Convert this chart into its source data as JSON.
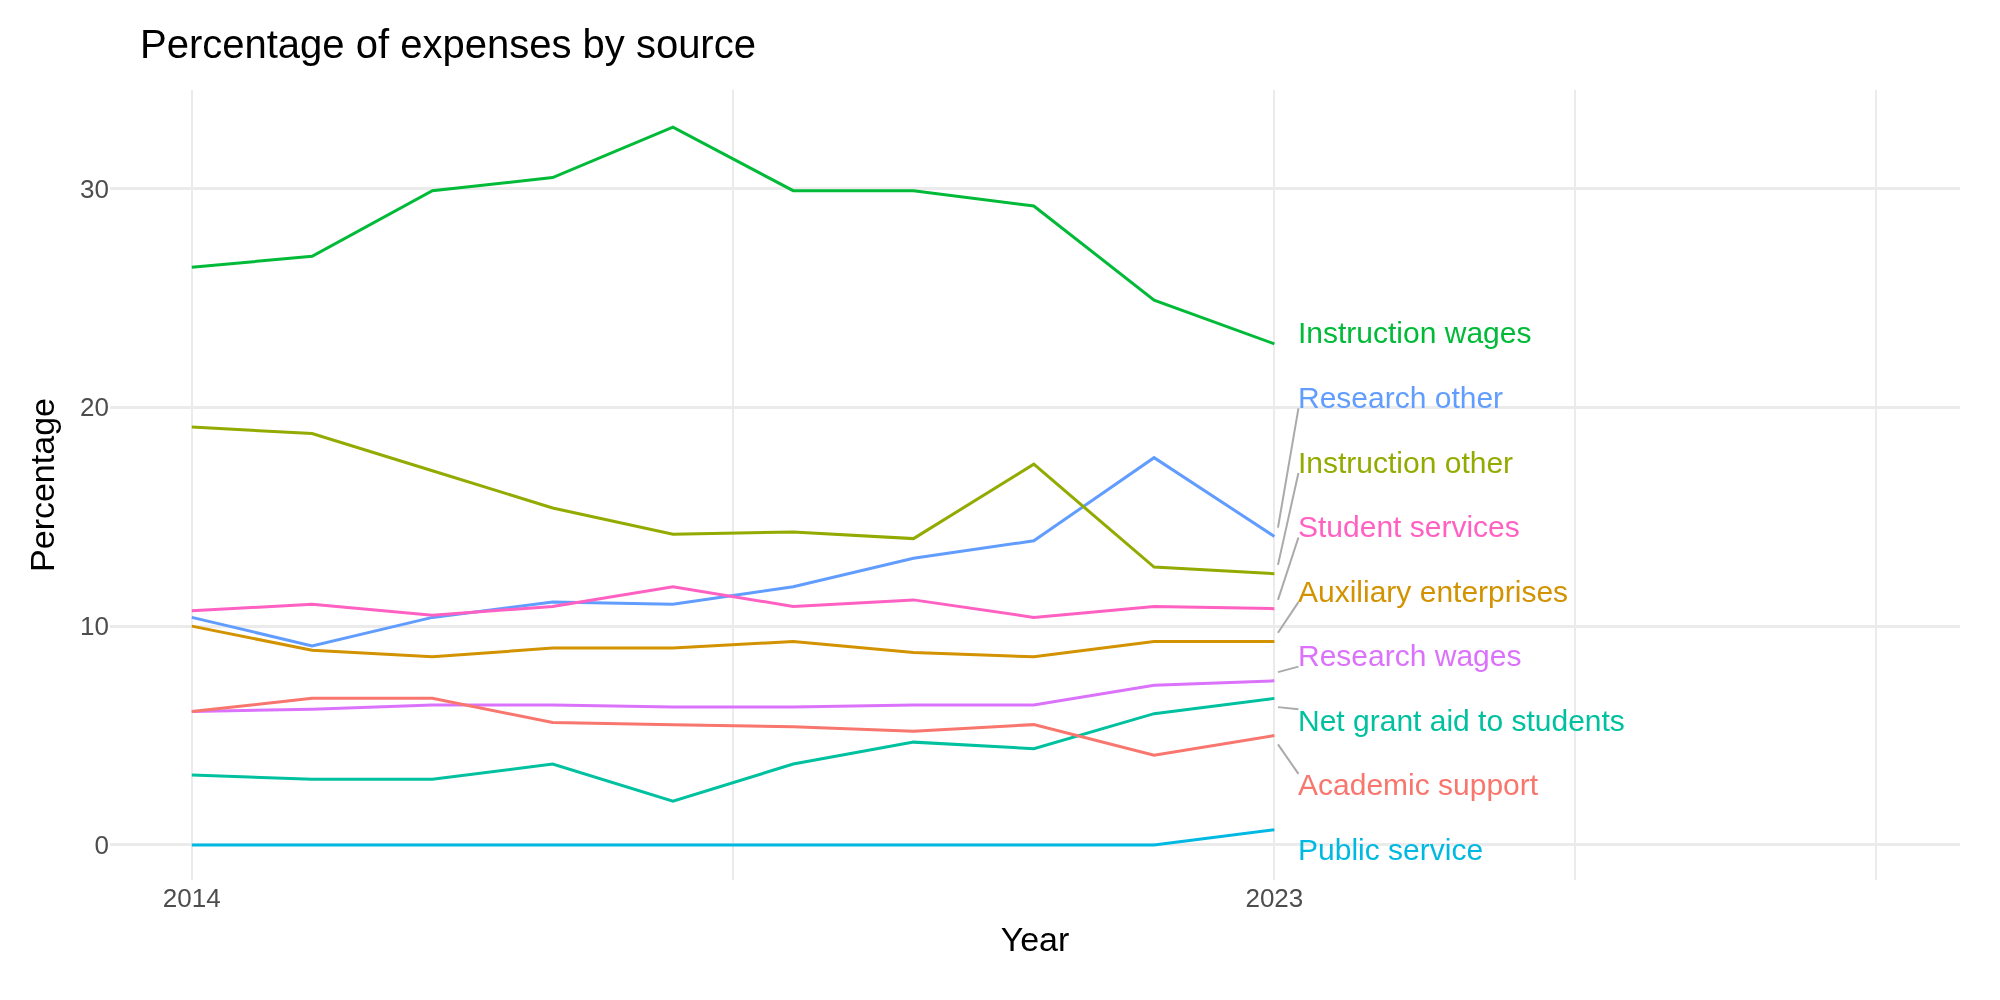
{
  "chart_data": {
    "type": "line",
    "title": "Percentage of expenses by source",
    "xlabel": "Year",
    "ylabel": "Percentage",
    "x": [
      2014,
      2015,
      2016,
      2017,
      2018,
      2019,
      2020,
      2021,
      2022,
      2023
    ],
    "xlim": [
      2013.32,
      2028.7
    ],
    "xticks": [
      2014,
      {
        "value": 2018.5,
        "label": null
      },
      2023,
      {
        "value": 2025.5,
        "label": null
      },
      {
        "value": 2028,
        "label": null
      }
    ],
    "ylim": [
      -1.6,
      34.5
    ],
    "yticks": [
      0,
      10,
      20,
      30
    ],
    "grid": true,
    "legend": false,
    "series": [
      {
        "name": "Instruction wages",
        "color": "#00ba38",
        "values": [
          26.4,
          26.9,
          29.9,
          30.5,
          32.8,
          29.9,
          29.9,
          29.2,
          24.9,
          22.9
        ]
      },
      {
        "name": "Research other",
        "color": "#619cff",
        "values": [
          10.4,
          9.1,
          10.4,
          11.1,
          11.0,
          11.8,
          13.1,
          13.9,
          17.7,
          14.1
        ]
      },
      {
        "name": "Instruction other",
        "color": "#93aa00",
        "values": [
          19.1,
          18.8,
          17.1,
          15.4,
          14.2,
          14.3,
          14.0,
          17.4,
          12.7,
          12.4
        ]
      },
      {
        "name": "Student services",
        "color": "#ff61c3",
        "values": [
          10.7,
          11.0,
          10.5,
          10.9,
          11.8,
          10.9,
          11.2,
          10.4,
          10.9,
          10.8
        ]
      },
      {
        "name": "Auxiliary enterprises",
        "color": "#d39200",
        "values": [
          10.0,
          8.9,
          8.6,
          9.0,
          9.0,
          9.3,
          8.8,
          8.6,
          9.3,
          9.3
        ]
      },
      {
        "name": "Research wages",
        "color": "#db72fb",
        "values": [
          6.1,
          6.2,
          6.4,
          6.4,
          6.3,
          6.3,
          6.4,
          6.4,
          7.3,
          7.5
        ]
      },
      {
        "name": "Net grant aid to students",
        "color": "#00c19f",
        "values": [
          3.2,
          3.0,
          3.0,
          3.7,
          2.0,
          3.7,
          4.7,
          4.4,
          6.0,
          6.7
        ]
      },
      {
        "name": "Academic support",
        "color": "#f8766d",
        "values": [
          6.1,
          6.7,
          6.7,
          5.6,
          5.5,
          5.4,
          5.2,
          5.5,
          4.1,
          5.0
        ]
      },
      {
        "name": "Public service",
        "color": "#00b9e3",
        "values": [
          0,
          0,
          0,
          0,
          0,
          0,
          0,
          0,
          0,
          0.7
        ]
      }
    ]
  }
}
